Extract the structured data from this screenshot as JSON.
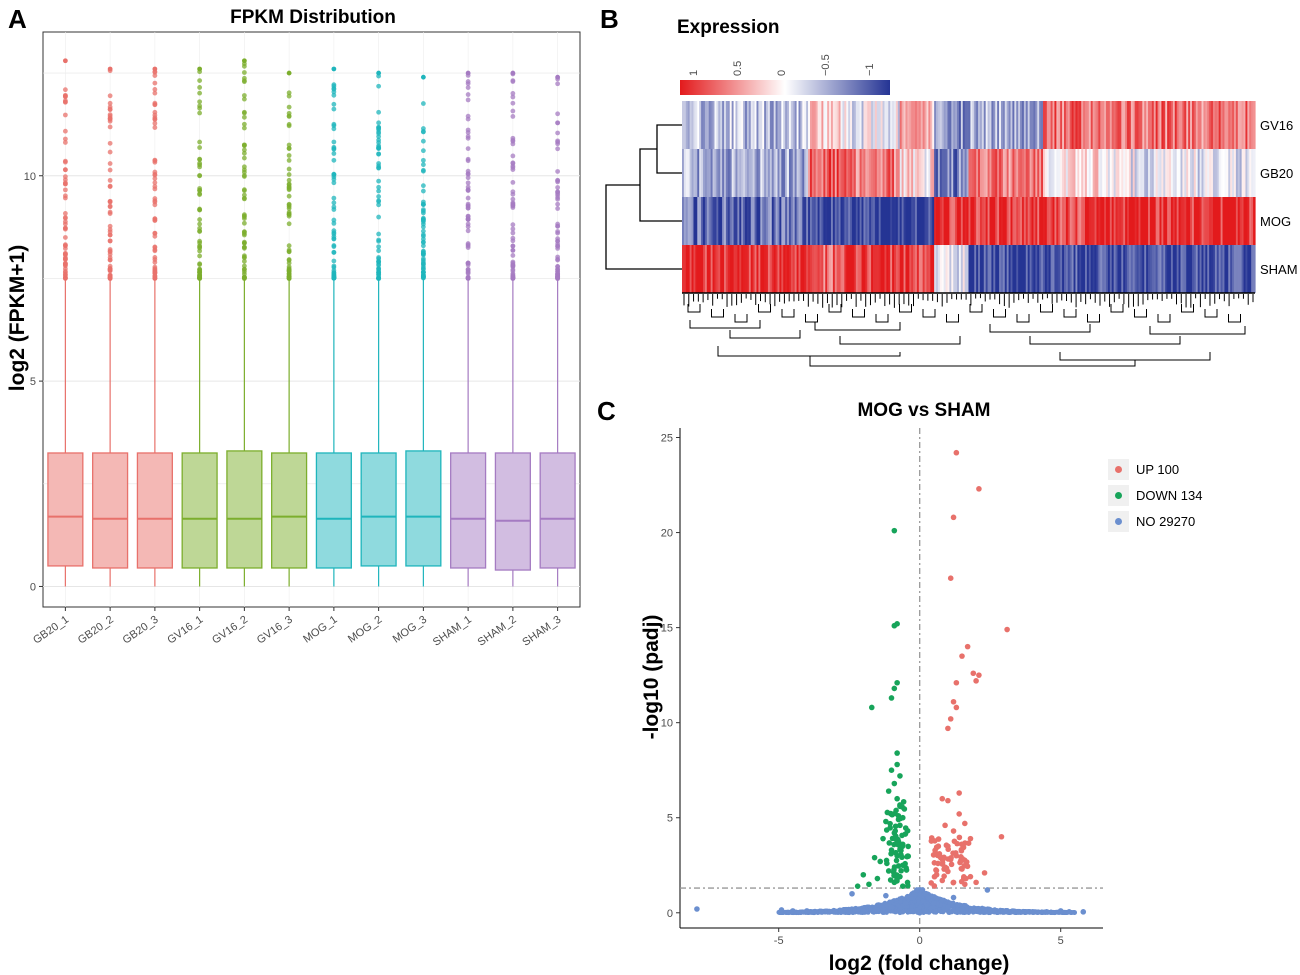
{
  "panel_a": {
    "label": "A",
    "chart_data": {
      "type": "box",
      "title": "FPKM Distribution",
      "ylabel": "log2 (FPKM+1)",
      "xlabel": "",
      "ylim": [
        -0.5,
        13.5
      ],
      "yticks": [
        0,
        5,
        10
      ],
      "categories": [
        "GB20_1",
        "GB20_2",
        "GB20_3",
        "GV16_1",
        "GV16_2",
        "GV16_3",
        "MOG_1",
        "MOG_2",
        "MOG_3",
        "SHAM_1",
        "SHAM_2",
        "SHAM_3"
      ],
      "groups": [
        "GB20",
        "GB20",
        "GB20",
        "GV16",
        "GV16",
        "GV16",
        "MOG",
        "MOG",
        "MOG",
        "SHAM",
        "SHAM",
        "SHAM"
      ],
      "group_colors": {
        "GB20": "#E8716B",
        "GV16": "#7CAE2D",
        "MOG": "#1FB5BC",
        "SHAM": "#A57BC2"
      },
      "boxes": [
        {
          "min": 0.0,
          "q1": 0.5,
          "median": 1.7,
          "q3": 3.25,
          "whisker_high": 7.5,
          "max": 12.8
        },
        {
          "min": 0.0,
          "q1": 0.45,
          "median": 1.65,
          "q3": 3.25,
          "whisker_high": 7.5,
          "max": 12.6
        },
        {
          "min": 0.0,
          "q1": 0.45,
          "median": 1.65,
          "q3": 3.25,
          "whisker_high": 7.5,
          "max": 12.6
        },
        {
          "min": 0.0,
          "q1": 0.45,
          "median": 1.65,
          "q3": 3.25,
          "whisker_high": 7.5,
          "max": 12.6
        },
        {
          "min": 0.0,
          "q1": 0.45,
          "median": 1.65,
          "q3": 3.3,
          "whisker_high": 7.5,
          "max": 12.8
        },
        {
          "min": 0.0,
          "q1": 0.45,
          "median": 1.7,
          "q3": 3.25,
          "whisker_high": 7.5,
          "max": 12.5
        },
        {
          "min": 0.0,
          "q1": 0.45,
          "median": 1.65,
          "q3": 3.25,
          "whisker_high": 7.5,
          "max": 12.6
        },
        {
          "min": 0.0,
          "q1": 0.5,
          "median": 1.7,
          "q3": 3.25,
          "whisker_high": 7.5,
          "max": 12.5
        },
        {
          "min": 0.0,
          "q1": 0.5,
          "median": 1.7,
          "q3": 3.3,
          "whisker_high": 7.5,
          "max": 12.4
        },
        {
          "min": 0.0,
          "q1": 0.45,
          "median": 1.65,
          "q3": 3.25,
          "whisker_high": 7.5,
          "max": 12.5
        },
        {
          "min": 0.0,
          "q1": 0.4,
          "median": 1.6,
          "q3": 3.25,
          "whisker_high": 7.5,
          "max": 12.5
        },
        {
          "min": 0.0,
          "q1": 0.45,
          "median": 1.65,
          "q3": 3.25,
          "whisker_high": 7.5,
          "max": 12.4
        }
      ]
    }
  },
  "panel_b": {
    "label": "B",
    "chart_data": {
      "type": "heatmap",
      "title": "Expression",
      "legend_ticks": [
        "1",
        "0.5",
        "0",
        "−0.5",
        "−1"
      ],
      "legend_values": [
        1,
        0.5,
        0,
        -0.5,
        -1
      ],
      "rows": [
        "GV16",
        "GB20",
        "MOG",
        "SHAM"
      ],
      "color_high": "#E31A1C",
      "color_mid": "#FFFFFF",
      "color_low": "#253494",
      "column_blocks": [
        {
          "fraction": 0.22,
          "GV16": -0.3,
          "GB20": -0.4,
          "MOG": -0.7,
          "SHAM": 0.95
        },
        {
          "fraction": 0.06,
          "GV16": 0.3,
          "GB20": 0.7,
          "MOG": -0.95,
          "SHAM": 0.6
        },
        {
          "fraction": 0.1,
          "GV16": -0.1,
          "GB20": 0.6,
          "MOG": -0.95,
          "SHAM": 0.9
        },
        {
          "fraction": 0.06,
          "GV16": 0.3,
          "GB20": 0.1,
          "MOG": -0.95,
          "SHAM": 0.8
        },
        {
          "fraction": 0.06,
          "GV16": -0.5,
          "GB20": -0.6,
          "MOG": 0.9,
          "SHAM": -0.2
        },
        {
          "fraction": 0.13,
          "GV16": -0.4,
          "GB20": 0.6,
          "MOG": 0.9,
          "SHAM": -0.95
        },
        {
          "fraction": 0.11,
          "GV16": 0.6,
          "GB20": 0.1,
          "MOG": 0.85,
          "SHAM": -0.9
        },
        {
          "fraction": 0.26,
          "GV16": 0.6,
          "GB20": -0.1,
          "MOG": 0.95,
          "SHAM": -0.9
        }
      ]
    }
  },
  "panel_c": {
    "label": "C",
    "chart_data": {
      "type": "scatter",
      "title": "MOG vs SHAM",
      "xlabel": "log2 (fold change)",
      "ylabel": "-log10 (padj)",
      "xlim": [
        -8.5,
        6.5
      ],
      "ylim": [
        -0.8,
        25.5
      ],
      "xticks": [
        -5,
        0,
        5
      ],
      "yticks": [
        0,
        5,
        10,
        15,
        20,
        25
      ],
      "threshold_y": 1.3,
      "threshold_x": 0,
      "legend": [
        {
          "label": "UP 100",
          "color": "#E8716B"
        },
        {
          "label": "DOWN 134",
          "color": "#17A45A"
        },
        {
          "label": "NO 29270",
          "color": "#6B8FCF"
        }
      ],
      "series": [
        {
          "name": "UP",
          "color": "#E8716B",
          "points": [
            [
              1.3,
              24.2
            ],
            [
              2.1,
              22.3
            ],
            [
              1.2,
              20.8
            ],
            [
              1.1,
              17.6
            ],
            [
              3.1,
              14.9
            ],
            [
              1.7,
              14.0
            ],
            [
              1.5,
              13.5
            ],
            [
              1.9,
              12.6
            ],
            [
              2.1,
              12.5
            ],
            [
              2.0,
              12.2
            ],
            [
              1.3,
              12.1
            ],
            [
              1.2,
              11.1
            ],
            [
              1.3,
              10.8
            ],
            [
              1.1,
              10.2
            ],
            [
              1.0,
              9.7
            ],
            [
              2.9,
              4.0
            ],
            [
              1.4,
              6.3
            ],
            [
              1.0,
              5.9
            ],
            [
              0.8,
              6.0
            ],
            [
              1.4,
              5.2
            ],
            [
              1.6,
              4.7
            ],
            [
              0.9,
              4.6
            ],
            [
              1.2,
              4.3
            ],
            [
              1.8,
              3.9
            ],
            [
              1.0,
              3.5
            ],
            [
              0.7,
              3.1
            ],
            [
              1.3,
              3.0
            ],
            [
              2.3,
              2.1
            ],
            [
              1.1,
              2.8
            ],
            [
              0.9,
              2.4
            ],
            [
              1.5,
              2.3
            ],
            [
              0.6,
              2.0
            ],
            [
              1.8,
              1.9
            ],
            [
              0.8,
              1.7
            ],
            [
              1.2,
              1.6
            ],
            [
              2.0,
              1.6
            ],
            [
              1.6,
              1.5
            ]
          ]
        },
        {
          "name": "DOWN",
          "color": "#17A45A",
          "points": [
            [
              -0.9,
              20.1
            ],
            [
              -0.8,
              15.2
            ],
            [
              -0.9,
              15.1
            ],
            [
              -0.8,
              12.1
            ],
            [
              -0.9,
              11.8
            ],
            [
              -1.0,
              11.3
            ],
            [
              -1.7,
              10.8
            ],
            [
              -0.8,
              8.4
            ],
            [
              -0.8,
              7.8
            ],
            [
              -1.0,
              7.5
            ],
            [
              -0.7,
              7.2
            ],
            [
              -0.9,
              6.8
            ],
            [
              -1.1,
              6.4
            ],
            [
              -0.8,
              6.0
            ],
            [
              -0.7,
              5.6
            ],
            [
              -1.0,
              5.2
            ],
            [
              -0.6,
              5.0
            ],
            [
              -1.2,
              4.8
            ],
            [
              -0.7,
              4.6
            ],
            [
              -0.9,
              4.2
            ],
            [
              -1.3,
              3.9
            ],
            [
              -0.6,
              3.6
            ],
            [
              -1.0,
              3.3
            ],
            [
              -0.8,
              3.0
            ],
            [
              -1.6,
              2.9
            ],
            [
              -1.4,
              2.7
            ],
            [
              -0.6,
              2.5
            ],
            [
              -1.1,
              2.2
            ],
            [
              -2.0,
              2.0
            ],
            [
              -0.7,
              1.9
            ],
            [
              -1.5,
              1.8
            ],
            [
              -0.9,
              1.6
            ],
            [
              -1.8,
              1.5
            ],
            [
              -2.2,
              1.4
            ],
            [
              -0.6,
              1.4
            ]
          ]
        },
        {
          "name": "NO",
          "color": "#6B8FCF",
          "points": [
            [
              -7.9,
              0.2
            ],
            [
              -4.9,
              0.15
            ],
            [
              -4.5,
              0.1
            ],
            [
              -4.0,
              0.1
            ],
            [
              -3.5,
              0.05
            ],
            [
              -3.0,
              0.05
            ],
            [
              -2.5,
              0.05
            ],
            [
              -2.0,
              0.1
            ],
            [
              -1.5,
              0.15
            ],
            [
              -1.0,
              0.3
            ],
            [
              -0.5,
              0.5
            ],
            [
              -0.3,
              0.8
            ],
            [
              -0.2,
              1.0
            ],
            [
              -0.1,
              1.2
            ],
            [
              0.1,
              1.2
            ],
            [
              0.2,
              1.0
            ],
            [
              0.3,
              0.8
            ],
            [
              0.5,
              0.5
            ],
            [
              1.0,
              0.3
            ],
            [
              1.5,
              0.2
            ],
            [
              2.0,
              0.15
            ],
            [
              2.5,
              0.1
            ],
            [
              3.0,
              0.05
            ],
            [
              3.5,
              0.05
            ],
            [
              4.0,
              0.05
            ],
            [
              4.5,
              0.05
            ],
            [
              5.0,
              0.1
            ],
            [
              5.3,
              0.05
            ],
            [
              5.8,
              0.05
            ],
            [
              -1.2,
              0.9
            ],
            [
              1.2,
              0.8
            ],
            [
              2.4,
              1.2
            ],
            [
              -2.4,
              1.0
            ],
            [
              0.0,
              0.0
            ]
          ]
        }
      ]
    }
  }
}
